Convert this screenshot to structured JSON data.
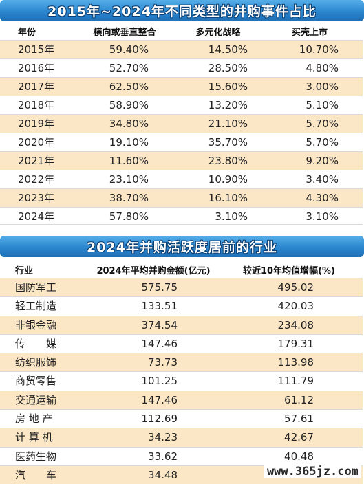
{
  "table1": {
    "title": "2015年~2024年不同类型的并购事件占比",
    "headers": [
      "年份",
      "横向或垂直整合",
      "多元化战略",
      "买壳上市"
    ],
    "rows": [
      {
        "year": "2015年",
        "a": "59.40%",
        "b": "14.50%",
        "c": "10.70%"
      },
      {
        "year": "2016年",
        "a": "52.70%",
        "b": "28.50%",
        "c": "4.80%"
      },
      {
        "year": "2017年",
        "a": "62.50%",
        "b": "15.60%",
        "c": "3.00%"
      },
      {
        "year": "2018年",
        "a": "58.90%",
        "b": "13.20%",
        "c": "5.10%"
      },
      {
        "year": "2019年",
        "a": "34.80%",
        "b": "21.10%",
        "c": "5.70%"
      },
      {
        "year": "2020年",
        "a": "19.10%",
        "b": "35.70%",
        "c": "5.70%"
      },
      {
        "year": "2021年",
        "a": "11.60%",
        "b": "23.80%",
        "c": "9.20%"
      },
      {
        "year": "2022年",
        "a": "23.10%",
        "b": "10.90%",
        "c": "3.40%"
      },
      {
        "year": "2023年",
        "a": "38.70%",
        "b": "16.10%",
        "c": "4.30%"
      },
      {
        "year": "2024年",
        "a": "57.80%",
        "b": "3.10%",
        "c": "3.10%"
      }
    ]
  },
  "table2": {
    "title": "2024年并购活跃度居前的行业",
    "headers": [
      "行业",
      "2024年平均并购金额(亿元)",
      "较近10年均值增幅(%)"
    ],
    "rows": [
      {
        "industry": "国防军工",
        "amount": "575.75",
        "growth": "495.02"
      },
      {
        "industry": "轻工制造",
        "amount": "133.51",
        "growth": "420.03"
      },
      {
        "industry": "非银金融",
        "amount": "374.54",
        "growth": "234.08"
      },
      {
        "industry": "传　　媒",
        "amount": "147.46",
        "growth": "179.31"
      },
      {
        "industry": "纺织服饰",
        "amount": "73.73",
        "growth": "113.98"
      },
      {
        "industry": "商贸零售",
        "amount": "101.25",
        "growth": "111.79"
      },
      {
        "industry": "交通运输",
        "amount": "147.46",
        "growth": "61.12"
      },
      {
        "industry": "房 地 产",
        "amount": "112.69",
        "growth": "57.61"
      },
      {
        "industry": "计 算 机",
        "amount": "34.23",
        "growth": "42.67"
      },
      {
        "industry": "医药生物",
        "amount": "33.62",
        "growth": "40.48"
      },
      {
        "industry": "汽　　车",
        "amount": "34.48",
        "growth": "34.48"
      }
    ]
  },
  "watermark": "www.365jz.com",
  "colors": {
    "banner_blue": "#2b86cf",
    "row_shade": "#fbe6c6",
    "banner_text_outline": "#0b3f73"
  }
}
